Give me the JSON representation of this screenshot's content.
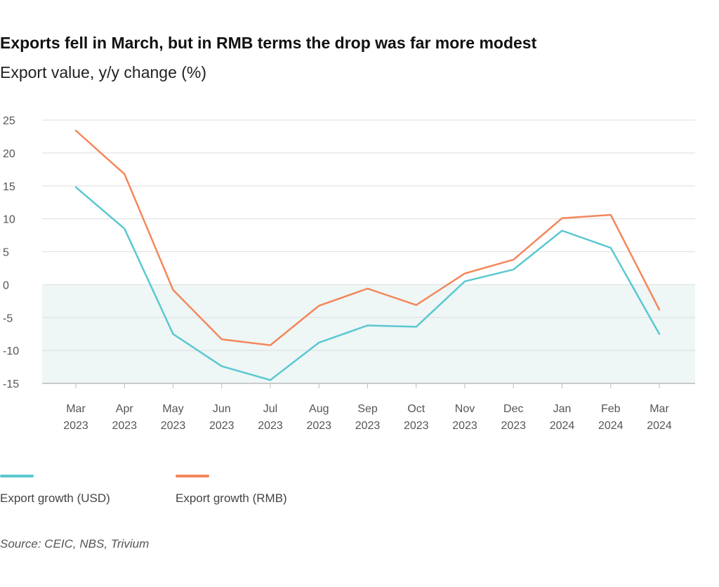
{
  "chart_data": {
    "type": "line",
    "title": "Exports fell in March, but in RMB terms the drop was far more modest",
    "subtitle": "Export value, y/y change (%)",
    "categories": [
      {
        "month": "Mar",
        "year": "2023"
      },
      {
        "month": "Apr",
        "year": "2023"
      },
      {
        "month": "May",
        "year": "2023"
      },
      {
        "month": "Jun",
        "year": "2023"
      },
      {
        "month": "Jul",
        "year": "2023"
      },
      {
        "month": "Aug",
        "year": "2023"
      },
      {
        "month": "Sep",
        "year": "2023"
      },
      {
        "month": "Oct",
        "year": "2023"
      },
      {
        "month": "Nov",
        "year": "2023"
      },
      {
        "month": "Dec",
        "year": "2023"
      },
      {
        "month": "Jan",
        "year": "2024"
      },
      {
        "month": "Feb",
        "year": "2024"
      },
      {
        "month": "Mar",
        "year": "2024"
      }
    ],
    "y_ticks": [
      "25",
      "20",
      "15",
      "10",
      "5",
      "0",
      "-5",
      "-10",
      "-15"
    ],
    "ylim": [
      -15,
      25
    ],
    "grid": true,
    "negative_region_shaded": true,
    "legend_position": "bottom-left",
    "series": [
      {
        "name": "Export growth (USD)",
        "color": "#5bc8d1",
        "values": [
          14.8,
          8.5,
          -7.5,
          -12.4,
          -14.5,
          -8.8,
          -6.2,
          -6.4,
          0.5,
          2.3,
          8.2,
          5.6,
          -7.5
        ]
      },
      {
        "name": "Export growth (RMB)",
        "color": "#f4875a",
        "values": [
          23.4,
          16.8,
          -0.8,
          -8.3,
          -9.2,
          -3.2,
          -0.6,
          -3.1,
          1.7,
          3.8,
          10.1,
          10.6,
          -3.8
        ]
      }
    ]
  },
  "source": "Source: CEIC, NBS, Trivium",
  "colors": {
    "grid": "#dddddd",
    "negative_shade": "#eef6f6",
    "axis": "#bbbbbb"
  }
}
